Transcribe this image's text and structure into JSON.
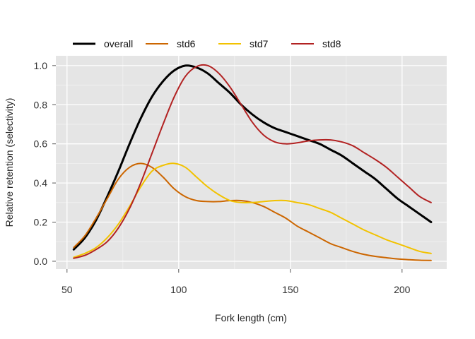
{
  "chart_data": {
    "type": "line",
    "xlabel": "Fork length (cm)",
    "ylabel": "Relative retention (selectivity)",
    "xlim": [
      45,
      220
    ],
    "ylim": [
      -0.04,
      1.05
    ],
    "xticks": [
      50,
      100,
      150,
      200
    ],
    "yticks": [
      0.0,
      0.2,
      0.4,
      0.6,
      0.8,
      1.0
    ],
    "xtick_labels": [
      "50",
      "100",
      "150",
      "200"
    ],
    "ytick_labels": [
      "0.0",
      "0.2",
      "0.4",
      "0.6",
      "0.8",
      "1.0"
    ],
    "grid": true,
    "legend_position": "top",
    "series": [
      {
        "name": "overall",
        "color": "#000000",
        "x": [
          53,
          58,
          63,
          68,
          73,
          78,
          83,
          88,
          93,
          98,
          103,
          108,
          113,
          118,
          123,
          128,
          133,
          138,
          143,
          148,
          153,
          158,
          163,
          168,
          173,
          178,
          183,
          188,
          193,
          198,
          203,
          208,
          213
        ],
        "y": [
          0.06,
          0.12,
          0.21,
          0.33,
          0.46,
          0.6,
          0.73,
          0.84,
          0.92,
          0.975,
          1.0,
          0.99,
          0.96,
          0.91,
          0.86,
          0.8,
          0.75,
          0.71,
          0.68,
          0.66,
          0.64,
          0.62,
          0.6,
          0.57,
          0.54,
          0.5,
          0.46,
          0.42,
          0.37,
          0.32,
          0.28,
          0.24,
          0.2
        ]
      },
      {
        "name": "std6",
        "color": "#CC6600",
        "x": [
          53,
          58,
          63,
          68,
          73,
          78,
          83,
          88,
          93,
          98,
          103,
          108,
          113,
          118,
          123,
          128,
          133,
          138,
          143,
          148,
          153,
          158,
          163,
          168,
          173,
          178,
          183,
          188,
          193,
          198,
          203,
          208,
          213
        ],
        "y": [
          0.07,
          0.13,
          0.22,
          0.32,
          0.42,
          0.48,
          0.5,
          0.48,
          0.43,
          0.37,
          0.33,
          0.31,
          0.305,
          0.305,
          0.31,
          0.31,
          0.3,
          0.28,
          0.25,
          0.22,
          0.18,
          0.15,
          0.12,
          0.09,
          0.07,
          0.05,
          0.035,
          0.025,
          0.018,
          0.012,
          0.008,
          0.005,
          0.004
        ]
      },
      {
        "name": "std7",
        "color": "#F2C200",
        "x": [
          53,
          58,
          63,
          68,
          73,
          78,
          83,
          88,
          93,
          98,
          103,
          108,
          113,
          118,
          123,
          128,
          133,
          138,
          143,
          148,
          153,
          158,
          163,
          168,
          173,
          178,
          183,
          188,
          193,
          198,
          203,
          208,
          213
        ],
        "y": [
          0.02,
          0.04,
          0.07,
          0.12,
          0.19,
          0.28,
          0.38,
          0.46,
          0.49,
          0.5,
          0.48,
          0.43,
          0.38,
          0.34,
          0.31,
          0.3,
          0.3,
          0.305,
          0.31,
          0.31,
          0.3,
          0.29,
          0.27,
          0.25,
          0.22,
          0.19,
          0.16,
          0.135,
          0.11,
          0.09,
          0.07,
          0.05,
          0.04
        ]
      },
      {
        "name": "std8",
        "color": "#B22222",
        "x": [
          53,
          58,
          63,
          68,
          73,
          78,
          83,
          88,
          93,
          98,
          103,
          108,
          113,
          118,
          123,
          128,
          133,
          138,
          143,
          148,
          153,
          158,
          163,
          168,
          173,
          178,
          183,
          188,
          193,
          198,
          203,
          208,
          213
        ],
        "y": [
          0.015,
          0.03,
          0.06,
          0.1,
          0.17,
          0.27,
          0.4,
          0.55,
          0.7,
          0.84,
          0.945,
          0.995,
          1.0,
          0.96,
          0.89,
          0.8,
          0.71,
          0.645,
          0.61,
          0.6,
          0.605,
          0.615,
          0.62,
          0.62,
          0.61,
          0.59,
          0.555,
          0.52,
          0.48,
          0.43,
          0.38,
          0.33,
          0.3
        ]
      }
    ]
  }
}
